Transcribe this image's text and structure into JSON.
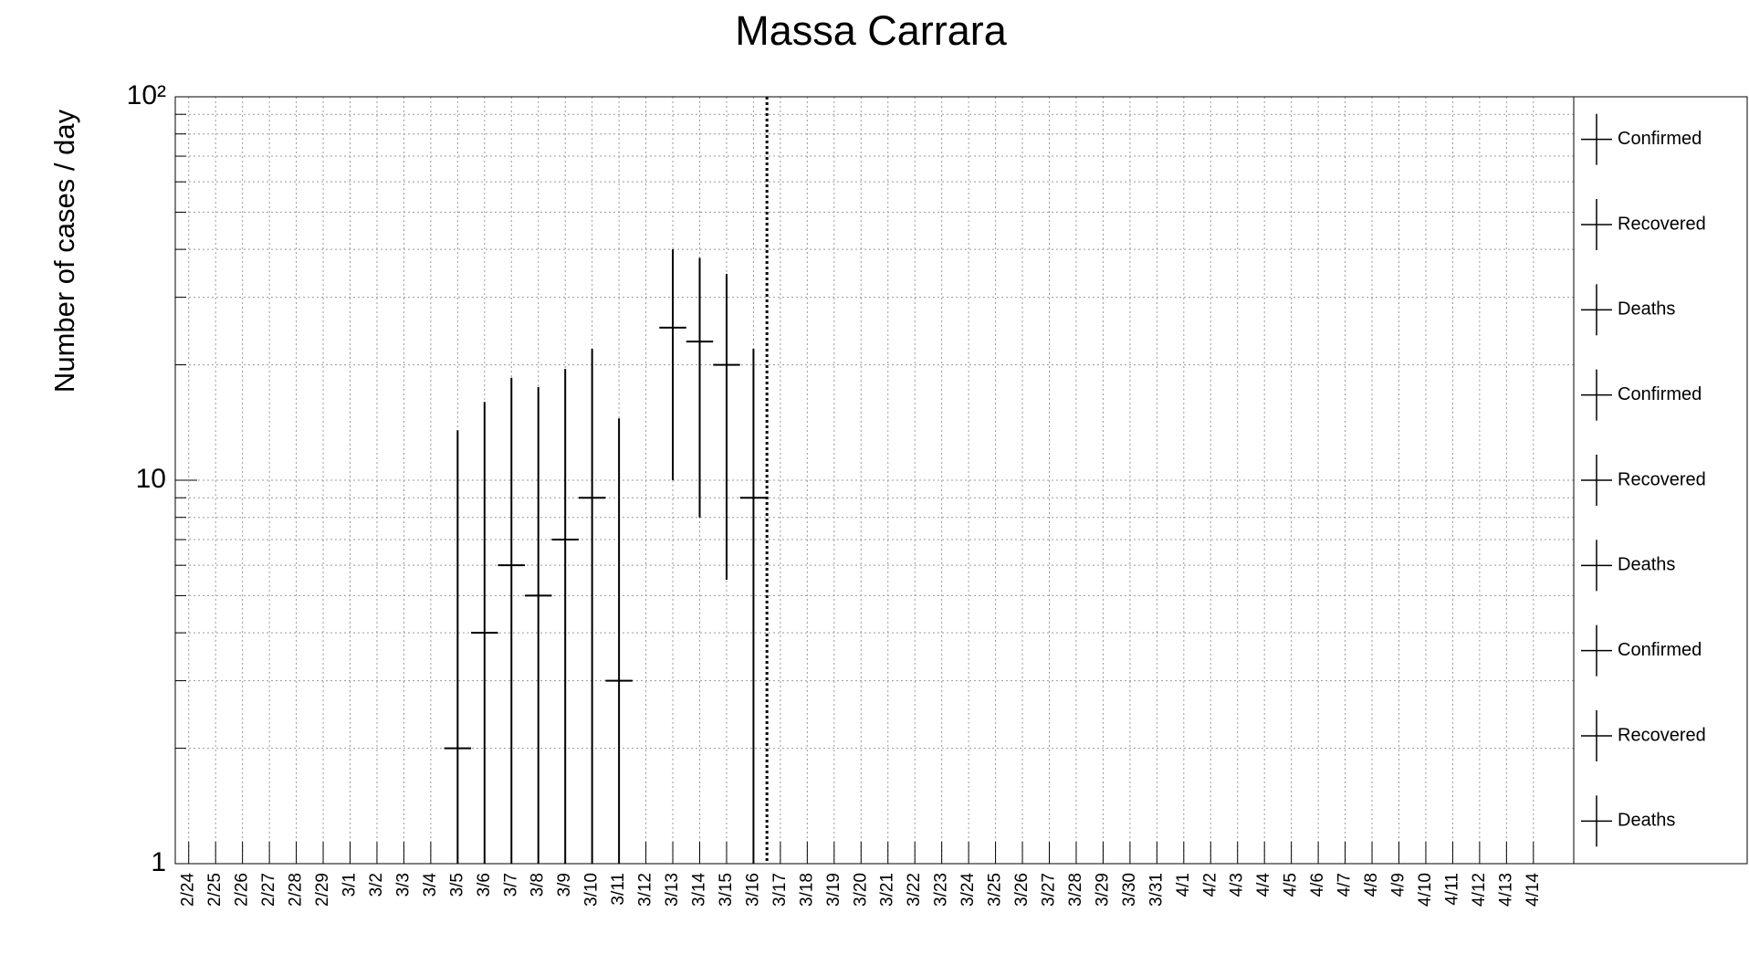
{
  "chart_data": {
    "type": "errorbar",
    "title": "Massa Carrara",
    "y_label": "Number of cases / day",
    "categories": [
      "2/24",
      "2/25",
      "2/26",
      "2/27",
      "2/28",
      "2/29",
      "3/1",
      "3/2",
      "3/3",
      "3/4",
      "3/5",
      "3/6",
      "3/7",
      "3/8",
      "3/9",
      "3/10",
      "3/11",
      "3/12",
      "3/13",
      "3/14",
      "3/15",
      "3/16",
      "3/17",
      "3/18",
      "3/19",
      "3/20",
      "3/21",
      "3/22",
      "3/23",
      "3/24",
      "3/25",
      "3/26",
      "3/27",
      "3/28",
      "3/29",
      "3/30",
      "3/31",
      "4/1",
      "4/2",
      "4/3",
      "4/4",
      "4/5",
      "4/6",
      "4/7",
      "4/8",
      "4/9",
      "4/10",
      "4/11",
      "4/12",
      "4/13",
      "4/14"
    ],
    "series": [
      {
        "name": "Confirmed",
        "color": "#000000",
        "values": [
          null,
          null,
          null,
          null,
          null,
          null,
          null,
          null,
          null,
          null,
          2,
          4,
          6,
          5,
          7,
          9,
          3,
          null,
          25,
          23,
          20,
          9,
          null,
          null,
          null,
          null,
          null,
          null,
          null,
          null,
          null,
          null,
          null,
          null,
          null,
          null,
          null,
          null,
          null,
          null,
          null,
          null,
          null,
          null,
          null,
          null,
          null,
          null,
          null,
          null,
          null
        ],
        "errors": [
          null,
          null,
          null,
          null,
          null,
          null,
          null,
          null,
          null,
          null,
          11.5,
          12,
          12.5,
          12.5,
          12.5,
          13,
          11.5,
          null,
          15,
          15,
          14.5,
          13,
          null,
          null,
          null,
          null,
          null,
          null,
          null,
          null,
          null,
          null,
          null,
          null,
          null,
          null,
          null,
          null,
          null,
          null,
          null,
          null,
          null,
          null,
          null,
          null,
          null,
          null,
          null,
          null,
          null
        ]
      }
    ],
    "legend": [
      "Confirmed",
      "Recovered",
      "Deaths",
      "Confirmed",
      "Recovered",
      "Deaths",
      "Confirmed",
      "Recovered",
      "Deaths"
    ],
    "y_scale": "log",
    "ylim": [
      1,
      100
    ],
    "yticks": [
      1,
      10,
      {
        "value": 100,
        "label": "10²"
      }
    ],
    "grid": true
  }
}
